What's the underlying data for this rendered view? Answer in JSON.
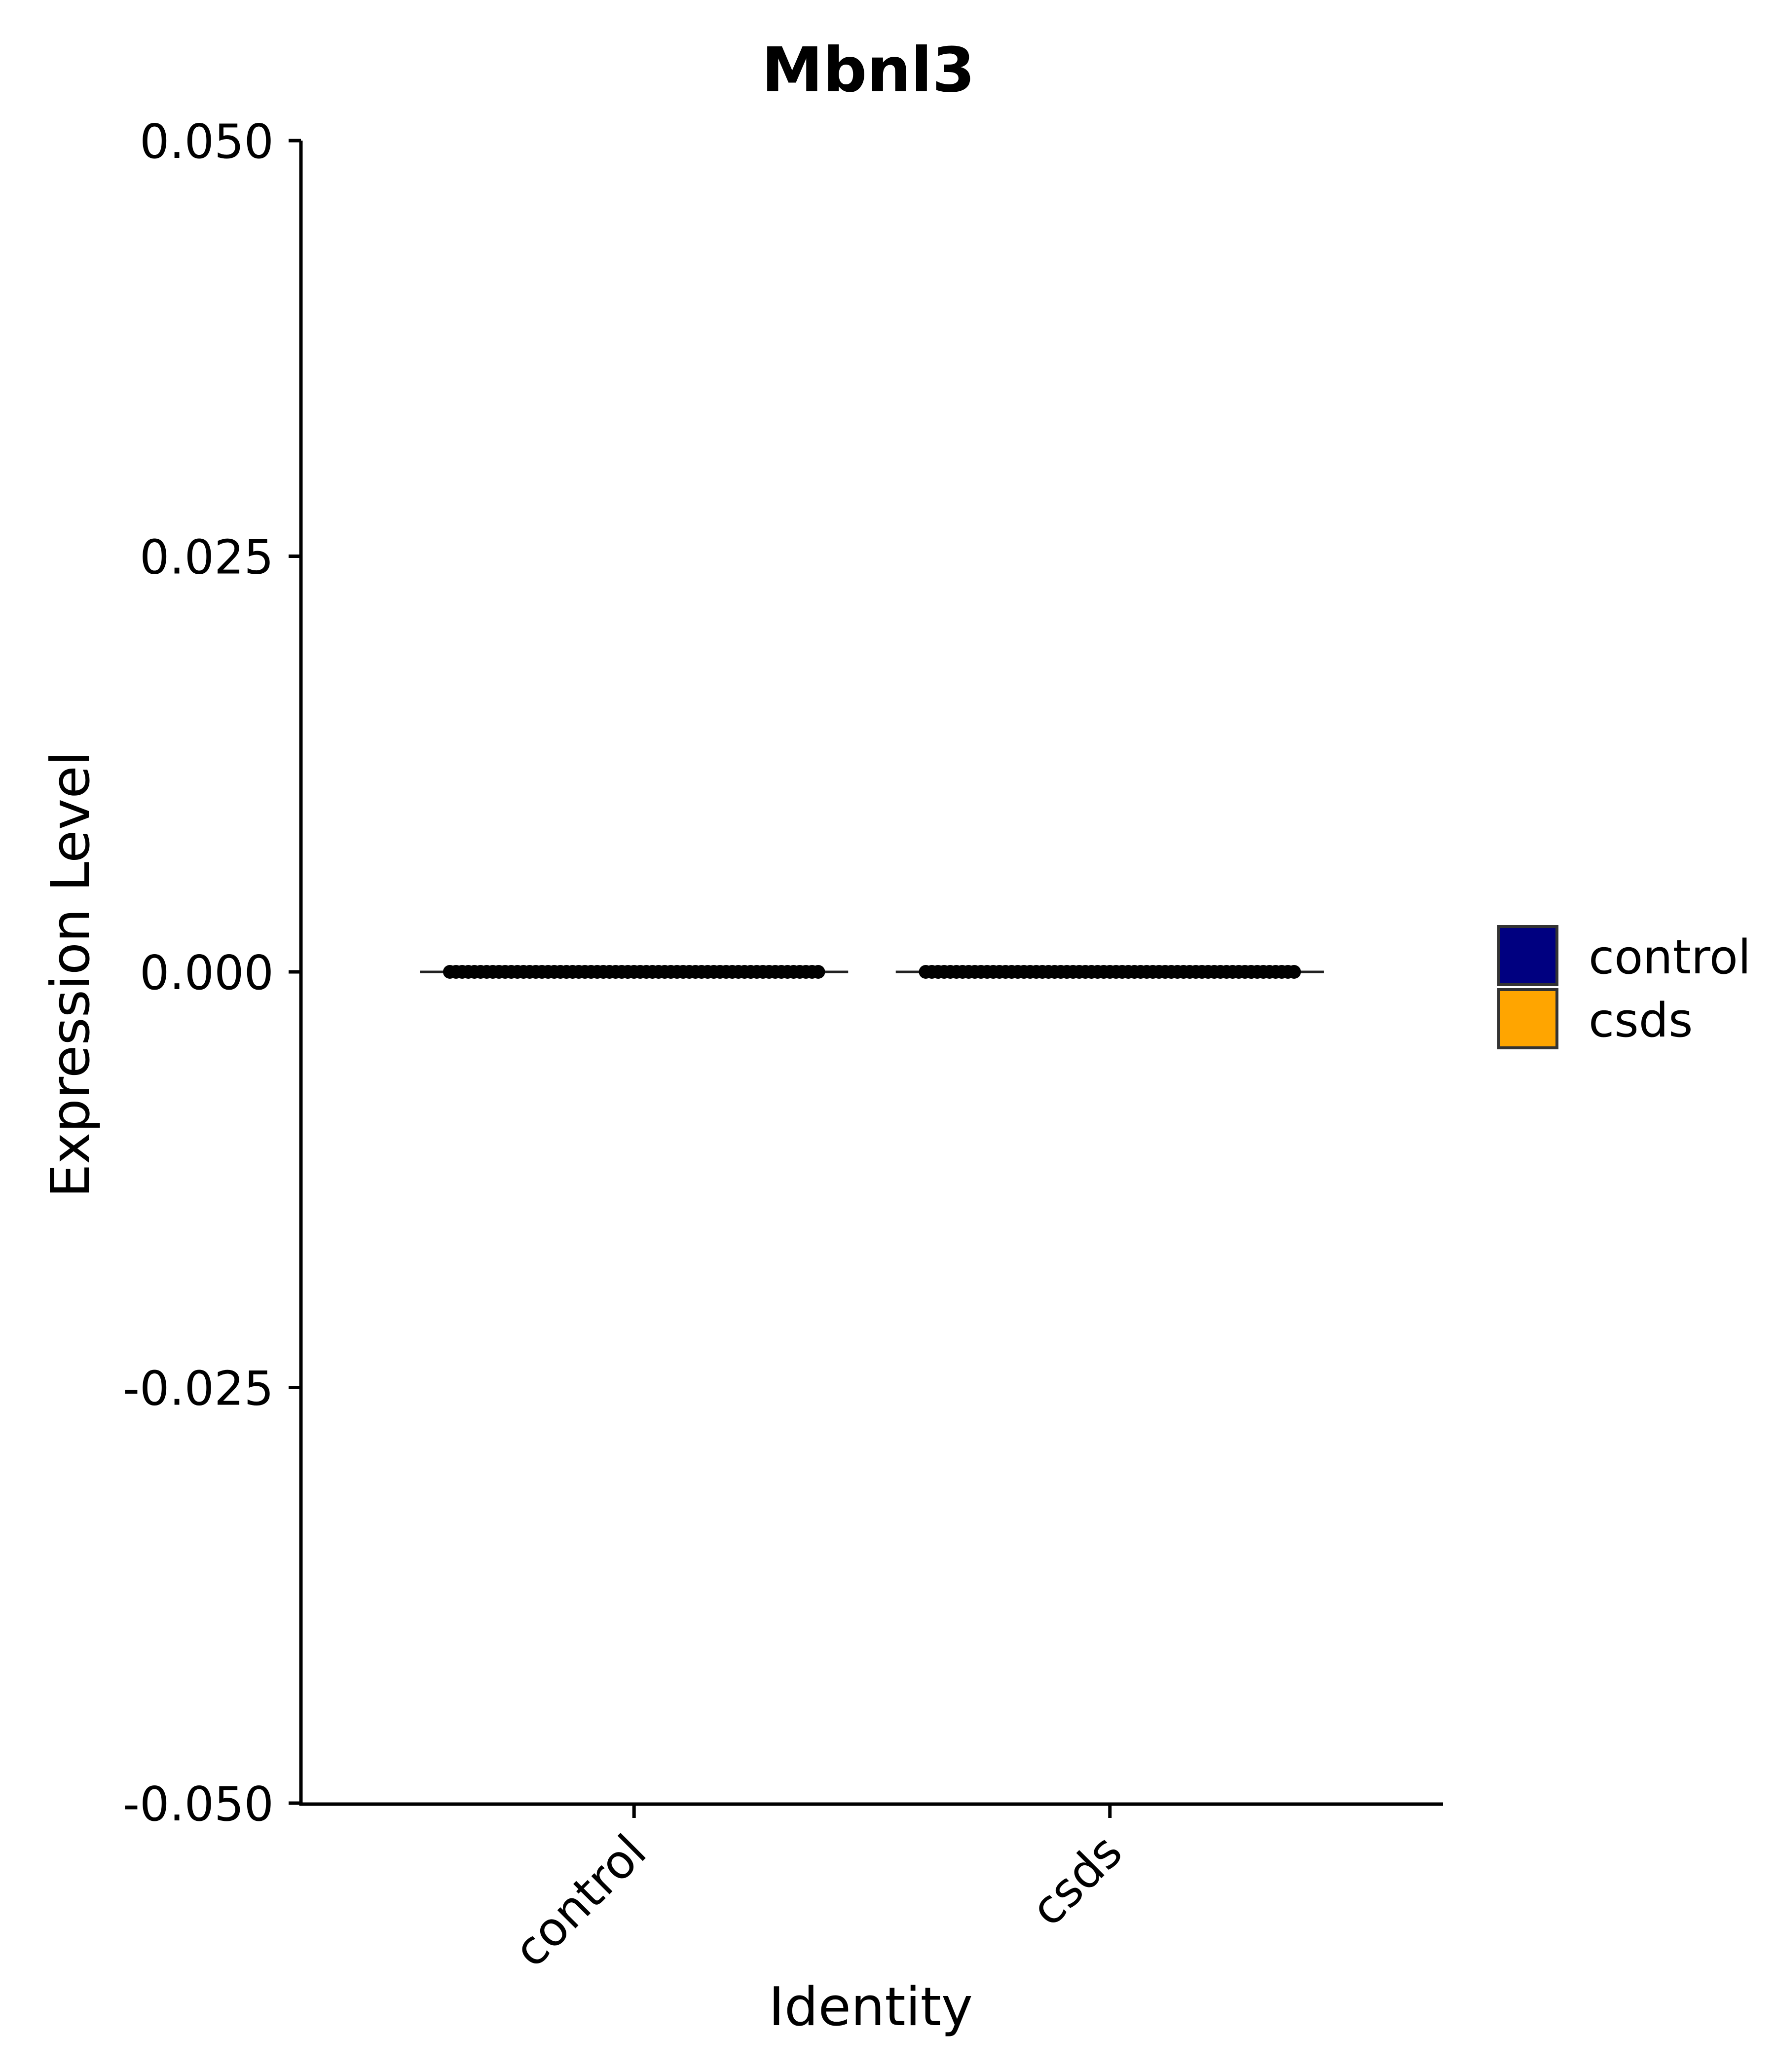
{
  "chart_data": {
    "type": "violin",
    "title": "Mbnl3",
    "xlabel": "Identity",
    "ylabel": "Expression Level",
    "categories": [
      "control",
      "csds"
    ],
    "yticks": [
      "0.050",
      "0.025",
      "0.000",
      "-0.025",
      "-0.050"
    ],
    "ytick_values": [
      0.05,
      0.025,
      0,
      -0.025,
      -0.05
    ],
    "ylim": [
      -0.05,
      0.05
    ],
    "series": [
      {
        "name": "control",
        "color": "#000080",
        "values": [
          0
        ]
      },
      {
        "name": "csds",
        "color": "#FFA500",
        "values": [
          0
        ]
      }
    ],
    "legend": {
      "placement": "right",
      "entries": [
        {
          "label": "control",
          "color": "#000080"
        },
        {
          "label": "csds",
          "color": "#FFA500"
        }
      ]
    },
    "grid": false
  }
}
